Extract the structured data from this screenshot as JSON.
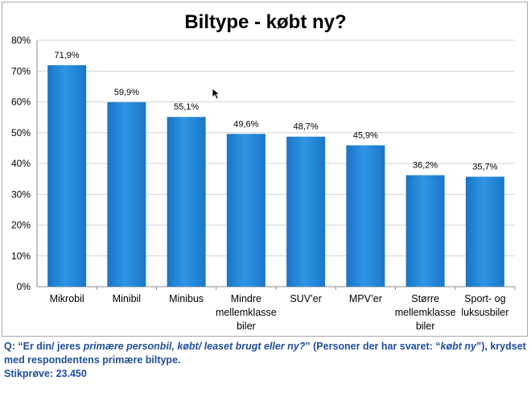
{
  "chart_data": {
    "type": "bar",
    "title": "Biltype - købt ny?",
    "categories": [
      [
        "Mikrobil"
      ],
      [
        "Minibil"
      ],
      [
        "Minibus"
      ],
      [
        "Mindre",
        "mellemklasse",
        "biler"
      ],
      [
        "SUV’er"
      ],
      [
        "MPV’er"
      ],
      [
        "Større",
        "mellemklasse",
        "biler"
      ],
      [
        "Sport- og",
        "luksusbiler"
      ]
    ],
    "values": [
      71.9,
      59.9,
      55.1,
      49.6,
      48.7,
      45.9,
      36.2,
      35.7
    ],
    "value_labels": [
      "71,9%",
      "59,9%",
      "55,1%",
      "49,6%",
      "48,7%",
      "45,9%",
      "36,2%",
      "35,7%"
    ],
    "ylim": [
      0,
      80
    ],
    "yticks": [
      "0%",
      "10%",
      "20%",
      "30%",
      "40%",
      "50%",
      "60%",
      "70%",
      "80%"
    ],
    "grid": true,
    "bar_color": "#2a8ee0"
  },
  "caption": {
    "q_prefix": "Q: “Er din/ jeres ",
    "q_italic1": "primære personbil, købt/ leaset brugt eller ny?",
    "q_mid": "” (Personer der har svaret: “",
    "q_italic2": "købt ny",
    "q_suffix": "”), krydset med respondentens primære biltype.",
    "sample": "Stikprøve: 23.450"
  }
}
